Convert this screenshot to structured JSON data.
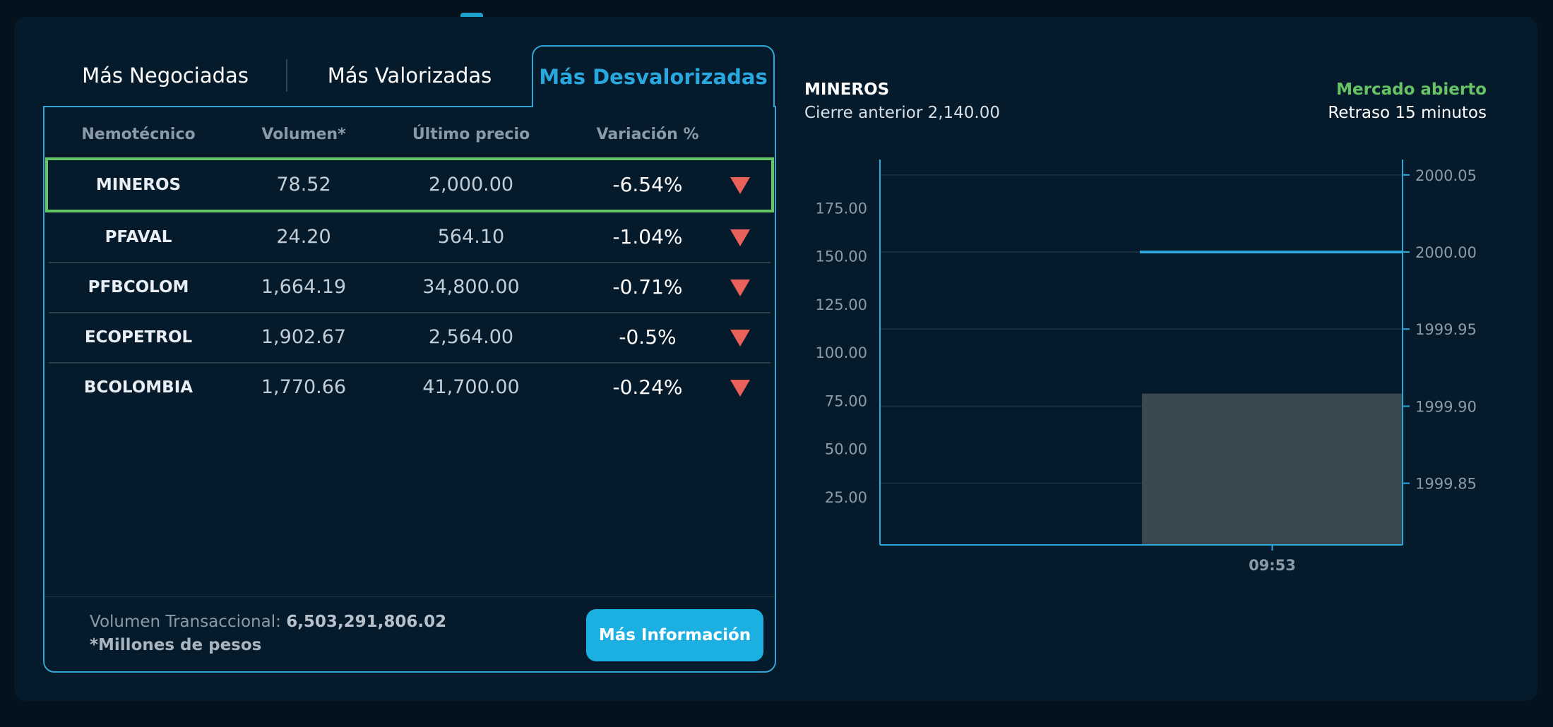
{
  "tabs": {
    "most_traded": "Más Negociadas",
    "top_gainers": "Más Valorizadas",
    "top_losers": "Más Desvalorizadas"
  },
  "table": {
    "headers": [
      "Nemotécnico",
      "Volumen*",
      "Último precio",
      "Variación %"
    ],
    "rows": [
      {
        "symbol": "MINEROS",
        "volume": "78.52",
        "price": "2,000.00",
        "change": "-6.54%"
      },
      {
        "symbol": "PFAVAL",
        "volume": "24.20",
        "price": "564.10",
        "change": "-1.04%"
      },
      {
        "symbol": "PFBCOLOM",
        "volume": "1,664.19",
        "price": "34,800.00",
        "change": "-0.71%"
      },
      {
        "symbol": "ECOPETROL",
        "volume": "1,902.67",
        "price": "2,564.00",
        "change": "-0.5%"
      },
      {
        "symbol": "BCOLOMBIA",
        "volume": "1,770.66",
        "price": "41,700.00",
        "change": "-0.24%"
      }
    ]
  },
  "footer": {
    "volume_label": "Volumen Transaccional:",
    "volume_value": "6,503,291,806.02",
    "note": "*Millones de pesos",
    "button": "Más Información"
  },
  "chart_header": {
    "symbol": "MINEROS",
    "prev_close": "Cierre anterior 2,140.00",
    "market_status": "Mercado abierto",
    "delay": "Retraso 15 minutos"
  },
  "colors": {
    "accent": "#29a8df",
    "down": "#e8615b",
    "open": "#66c466",
    "selected_border": "#65c466",
    "volume_bar": "#3a4850"
  },
  "chart_data": {
    "type": "bar",
    "x": [
      "09:53"
    ],
    "series": [
      {
        "values": [
          78.52
        ],
        "axis": "left",
        "type": "bar"
      },
      {
        "values": [
          2000.0
        ],
        "axis": "right",
        "type": "line"
      }
    ],
    "left_ticks": [
      "25.00",
      "50.00",
      "75.00",
      "100.00",
      "125.00",
      "150.00",
      "175.00"
    ],
    "right_ticks": [
      "1999.85",
      "1999.90",
      "1999.95",
      "2000.00",
      "2000.05"
    ],
    "left_range": [
      0,
      200
    ],
    "right_range": [
      1999.81,
      2000.06
    ],
    "xlabel": "",
    "ylabel": "",
    "grid": true
  }
}
